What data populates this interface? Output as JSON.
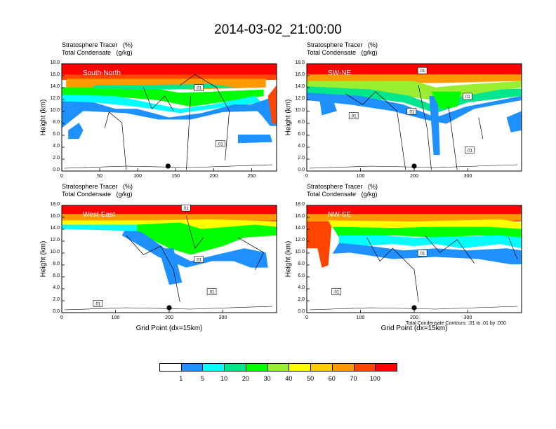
{
  "title": "2014-03-02_21:00:00",
  "panel_title_lines": [
    "Stratosphere Tracer   (%)",
    "Total Condensate   (g/kg)"
  ],
  "ylabel": "Height (km)",
  "xlabel": "Grid Point (dx=15km)",
  "contour_note": "Total Condensate Contours: .01 to .01 by .000",
  "colorbar": {
    "colors": [
      "#ffffff",
      "#1e90ff",
      "#00ffff",
      "#00e68c",
      "#00ff00",
      "#9aee32",
      "#ffff00",
      "#ffcc00",
      "#ff9900",
      "#ff4500",
      "#ff0000"
    ],
    "labels": [
      "1",
      "5",
      "10",
      "20",
      "30",
      "40",
      "50",
      "60",
      "70",
      "100"
    ]
  },
  "chart_data": [
    {
      "type": "heatmap",
      "name": "South-North",
      "xlim": [
        0,
        283
      ],
      "ylim": [
        0,
        18
      ],
      "xticks": [
        "0",
        "50",
        "100",
        "150",
        "200",
        "250"
      ],
      "yticks": [
        "0.0",
        "2.0",
        "4.0",
        "6.0",
        "8.0",
        "10.0",
        "12.0",
        "14.0",
        "16.0",
        "18.0"
      ],
      "contour_labels": [
        ".01",
        ".01"
      ],
      "marker_x": 140
    },
    {
      "type": "heatmap",
      "name": "SW-NE",
      "xlim": [
        0,
        400
      ],
      "ylim": [
        0,
        18
      ],
      "xticks": [
        "0",
        "100",
        "200",
        "300"
      ],
      "yticks": [
        "0.0",
        "2.0",
        "4.0",
        "6.0",
        "8.0",
        "10.0",
        "12.0",
        "14.0",
        "16.0",
        "18.0"
      ],
      "contour_labels": [
        ".01",
        ".01",
        ".01",
        ".01",
        ".01"
      ],
      "marker_x": 200
    },
    {
      "type": "heatmap",
      "name": "West-East",
      "xlim": [
        0,
        400
      ],
      "ylim": [
        0,
        18
      ],
      "xticks": [
        "0",
        "100",
        "200",
        "300"
      ],
      "yticks": [
        "0.0",
        "2.0",
        "4.0",
        "6.0",
        "8.0",
        "10.0",
        "12.0",
        "14.0",
        "16.0",
        "18.0"
      ],
      "contour_labels": [
        ".01",
        ".01",
        ".01",
        ".01"
      ],
      "marker_x": 200
    },
    {
      "type": "heatmap",
      "name": "NW-SE",
      "xlim": [
        0,
        400
      ],
      "ylim": [
        0,
        18
      ],
      "xticks": [
        "0",
        "100",
        "200",
        "300"
      ],
      "yticks": [
        "0.0",
        "2.0",
        "4.0",
        "6.0",
        "8.0",
        "10.0",
        "12.0",
        "14.0",
        "16.0",
        "18.0"
      ],
      "contour_labels": [
        ".01",
        ".01"
      ],
      "marker_x": 200
    }
  ]
}
